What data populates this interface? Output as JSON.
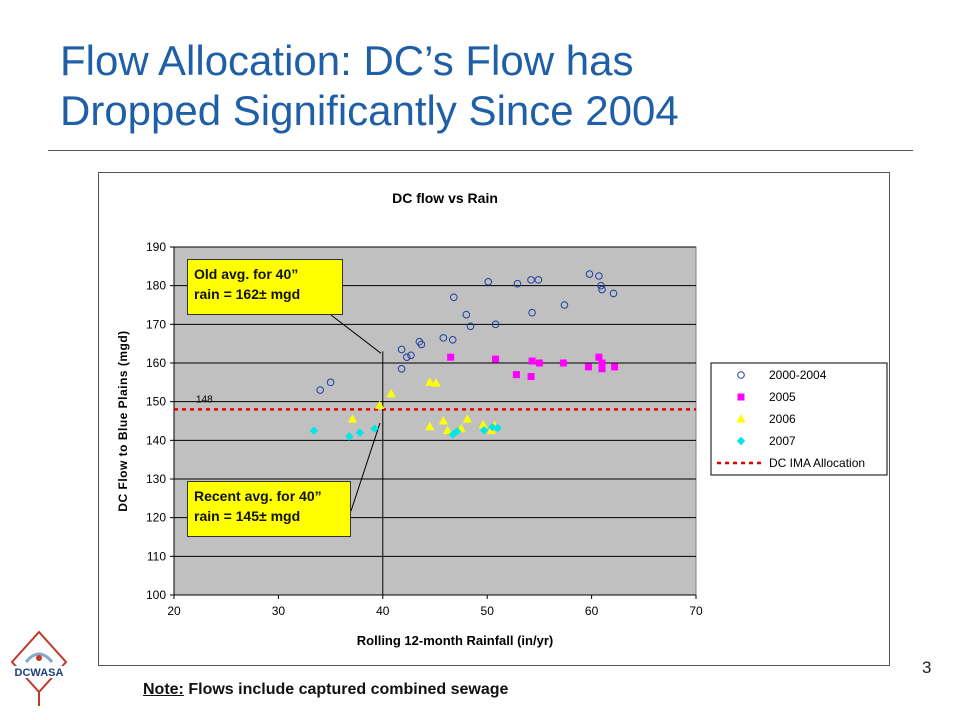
{
  "slide": {
    "title_line1": "Flow Allocation: DC’s Flow has",
    "title_line2": "Dropped Significantly Since 2004",
    "page_number": "3",
    "footnote_label": "Note:",
    "footnote_text": "Flows include captured combined sewage",
    "logo_text": "DCWASA",
    "colors": {
      "title": "#1f5fa8",
      "plot_bg": "#c0c0c0",
      "callout": "#ffff00"
    }
  },
  "callouts": {
    "old_line1": "Old avg. for 40”",
    "old_line2": "rain = 162± mgd",
    "recent_line1": "Recent avg. for 40”",
    "recent_line2": "rain = 145± mgd"
  },
  "chart_data": {
    "type": "scatter",
    "title": "DC flow vs Rain",
    "xlabel": "Rolling 12-month Rainfall (in/yr)",
    "ylabel": "DC Flow to Blue Plains (mgd)",
    "xlim": [
      20,
      70
    ],
    "ylim": [
      100,
      190
    ],
    "xticks": [
      20,
      30,
      40,
      50,
      60,
      70
    ],
    "yticks": [
      100,
      110,
      120,
      130,
      140,
      150,
      160,
      170,
      180,
      190
    ],
    "grid": "horizontal",
    "legend_position": "right",
    "reference_line": {
      "name": "DC IMA Allocation",
      "y": 148,
      "label": "148",
      "color": "#e00000"
    },
    "vertical_marker_x": 40,
    "series": [
      {
        "name": "2000-2004",
        "marker": "circle-open",
        "color": "#1f3f9f",
        "points": [
          [
            34,
            153
          ],
          [
            35,
            155
          ],
          [
            41.8,
            163.5
          ],
          [
            41.8,
            158.5
          ],
          [
            42.3,
            161.5
          ],
          [
            42.7,
            162
          ],
          [
            43.5,
            165.5
          ],
          [
            43.7,
            164.8
          ],
          [
            45.8,
            166.5
          ],
          [
            46.7,
            166
          ],
          [
            46.8,
            177
          ],
          [
            48,
            172.5
          ],
          [
            48.4,
            169.5
          ],
          [
            50.1,
            181
          ],
          [
            50.8,
            170
          ],
          [
            52.9,
            180.5
          ],
          [
            54.2,
            181.5
          ],
          [
            54.3,
            173
          ],
          [
            54.9,
            181.5
          ],
          [
            57.4,
            175
          ],
          [
            59.8,
            183
          ],
          [
            60.7,
            182.5
          ],
          [
            60.9,
            180
          ],
          [
            61,
            179
          ],
          [
            62.1,
            178
          ]
        ]
      },
      {
        "name": "2005",
        "marker": "square",
        "color": "#ff00ff",
        "points": [
          [
            46.5,
            161.5
          ],
          [
            50.8,
            161
          ],
          [
            52.8,
            157
          ],
          [
            54.3,
            160.5
          ],
          [
            54.2,
            156.5
          ],
          [
            55,
            160
          ],
          [
            57.3,
            160
          ],
          [
            59.7,
            159
          ],
          [
            60.7,
            161.5
          ],
          [
            61,
            160
          ],
          [
            61,
            158.5
          ],
          [
            62.2,
            159
          ]
        ]
      },
      {
        "name": "2006",
        "marker": "triangle",
        "color": "#ffff00",
        "points": [
          [
            37.1,
            145.5
          ],
          [
            39.7,
            149
          ],
          [
            40.8,
            152
          ],
          [
            44.5,
            155
          ],
          [
            45.1,
            154.8
          ],
          [
            44.5,
            143.5
          ],
          [
            45.8,
            145
          ],
          [
            46.2,
            142.5
          ],
          [
            47.5,
            143
          ],
          [
            48.1,
            145.5
          ],
          [
            49.6,
            144
          ],
          [
            50.4,
            142.5
          ],
          [
            50.7,
            143.8
          ]
        ]
      },
      {
        "name": "2007",
        "marker": "diamond",
        "color": "#00e5e5",
        "points": [
          [
            33.4,
            142.5
          ],
          [
            36.8,
            141
          ],
          [
            37.8,
            142
          ],
          [
            39.2,
            143
          ],
          [
            46.7,
            141.5
          ],
          [
            47.1,
            142.3
          ],
          [
            49.7,
            142.6
          ],
          [
            50.5,
            143.4
          ],
          [
            51,
            143.2
          ]
        ]
      }
    ]
  }
}
